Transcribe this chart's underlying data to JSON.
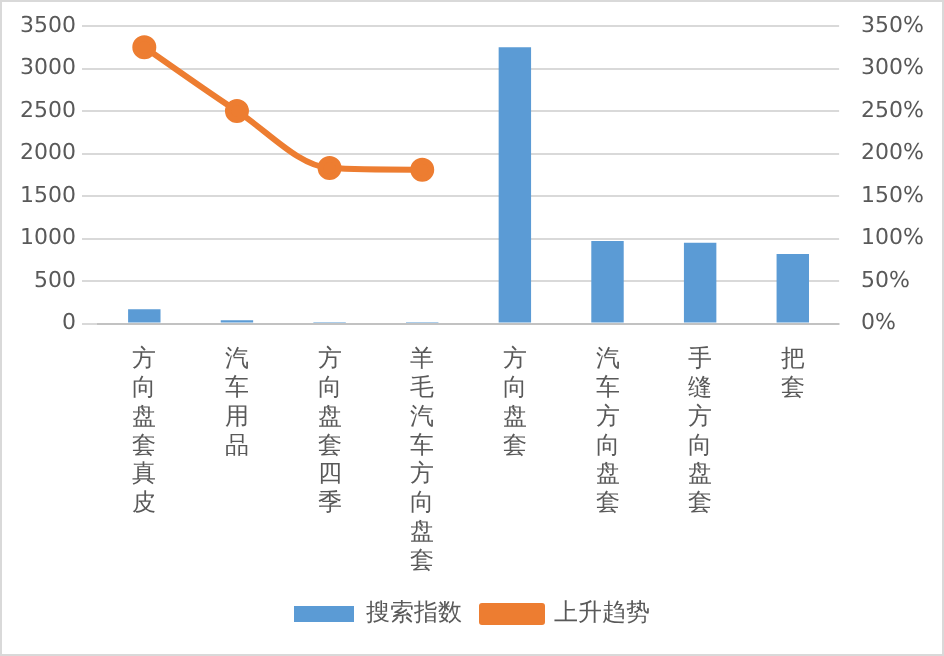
{
  "chart_data": {
    "type": "bar",
    "categories": [
      "方向盘套真皮",
      "汽车用品",
      "方向盘套四季",
      "羊毛汽车方向盘套",
      "方向盘套",
      "汽车方向盘套",
      "手缝方向盘套",
      "把套"
    ],
    "series": [
      {
        "name": "搜索指数",
        "color": "#5b9bd5",
        "values": [
          170,
          40,
          20,
          20,
          3250,
          970,
          950,
          820
        ]
      },
      {
        "name": "上升趋势",
        "type": "line",
        "axis": "y2",
        "color": "#ed7d31",
        "values": [
          325,
          250,
          183,
          181,
          null,
          null,
          null,
          null
        ]
      }
    ],
    "ylim": [
      0,
      3500
    ],
    "yticks": [
      0,
      500,
      1000,
      1500,
      2000,
      2500,
      3000,
      3500
    ],
    "y2lim": [
      0,
      350
    ],
    "y2ticks": [
      {
        "value": 0,
        "label": "0%"
      },
      {
        "value": 50,
        "label": "50%"
      },
      {
        "value": 100,
        "label": "100%"
      },
      {
        "value": 150,
        "label": "150%"
      },
      {
        "value": 200,
        "label": "200%"
      },
      {
        "value": 250,
        "label": "250%"
      },
      {
        "value": 300,
        "label": "300%"
      },
      {
        "value": 350,
        "label": "350%"
      }
    ],
    "grid": "y",
    "legend": "bottom",
    "marker": "circle"
  }
}
